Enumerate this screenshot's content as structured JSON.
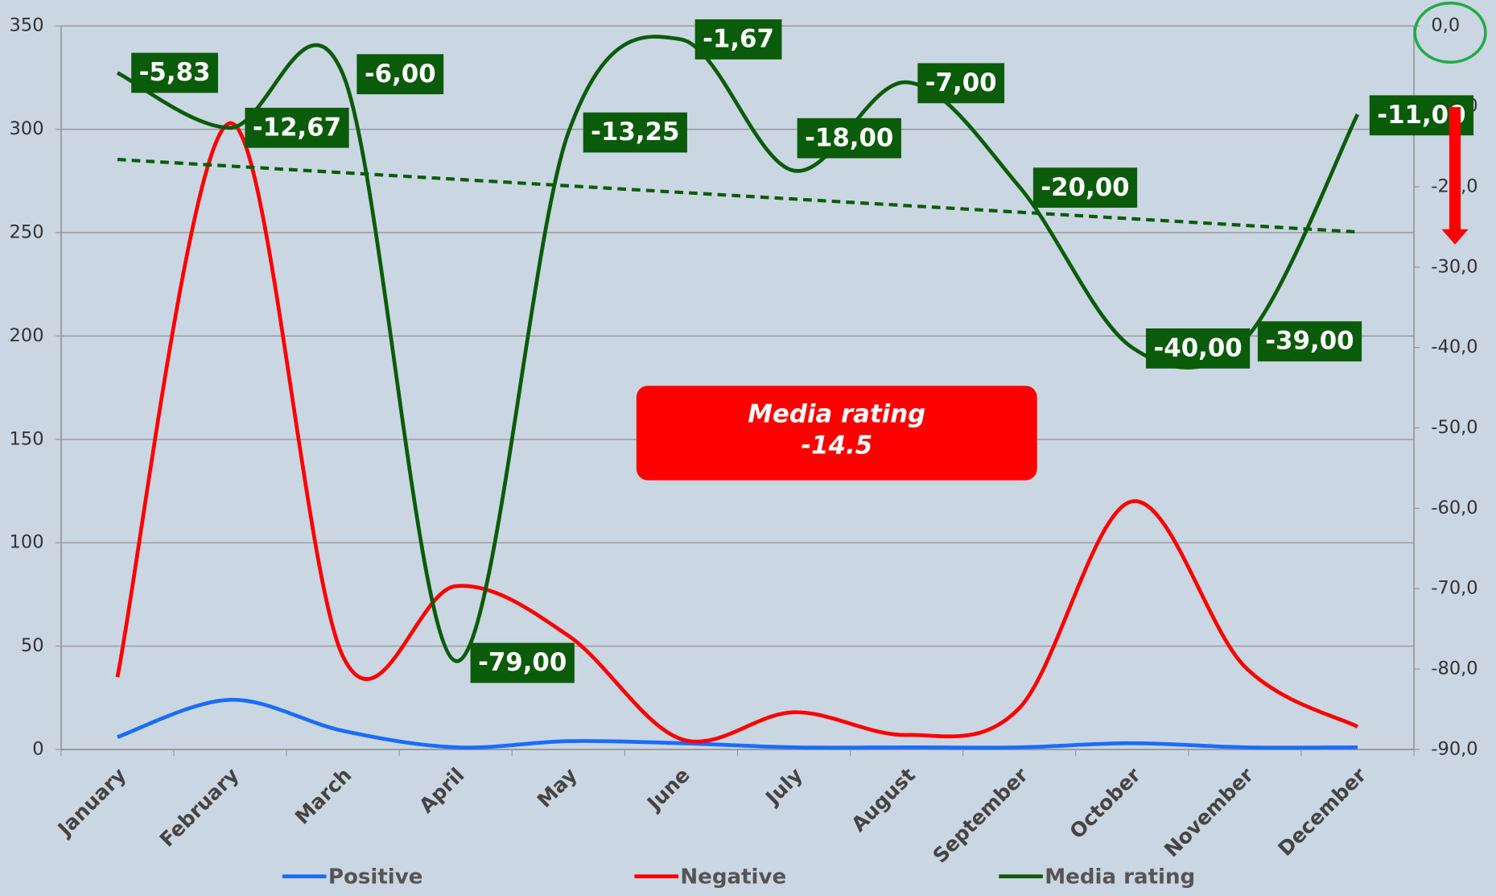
{
  "chart_data": {
    "type": "line",
    "categories": [
      "January",
      "February",
      "March",
      "April",
      "May",
      "June",
      "July",
      "August",
      "September",
      "October",
      "November",
      "December"
    ],
    "series": [
      {
        "name": "Positive",
        "color": "#1a6cff",
        "values": [
          6,
          24,
          9,
          1,
          4,
          3,
          1,
          1,
          1,
          3,
          1,
          1
        ]
      },
      {
        "name": "Negative",
        "color": "#ff0000",
        "values": [
          35,
          303,
          45,
          79,
          55,
          5,
          18,
          7,
          20,
          120,
          40,
          11
        ]
      },
      {
        "name": "Media rating",
        "color": "#0a5c0a",
        "axis": "y2",
        "trendline": true,
        "values": [
          -5.83,
          -12.67,
          -6,
          -79,
          -13.25,
          -1.67,
          -18,
          -7,
          -20,
          -40,
          -39,
          -11
        ],
        "value_labels": [
          "-5,83",
          "-12,67",
          "-6,00",
          "-79,00",
          "-13,25",
          "-1,67",
          "-18,00",
          "-7,00",
          "-20,00",
          "-40,00",
          "-39,00",
          "-11,00"
        ]
      }
    ],
    "ylim": [
      0,
      350
    ],
    "yticks": [
      0,
      50,
      100,
      150,
      200,
      250,
      300,
      350
    ],
    "y2lim": [
      -90,
      0
    ],
    "y2ticks": [
      {
        "value": 0,
        "label": "0,0"
      },
      {
        "value": -10,
        "label": "-10,0"
      },
      {
        "value": -20,
        "label": "-20,0"
      },
      {
        "value": -30,
        "label": "-30,0"
      },
      {
        "value": -40,
        "label": "-40,0"
      },
      {
        "value": -50,
        "label": "-50,0"
      },
      {
        "value": -60,
        "label": "-60,0"
      },
      {
        "value": -70,
        "label": "-70,0"
      },
      {
        "value": -80,
        "label": "-80,0"
      },
      {
        "value": -90,
        "label": "-90,0"
      }
    ],
    "grid": true,
    "legend": "bottom",
    "annotation": [
      "Media rating",
      "-14.5"
    ]
  }
}
